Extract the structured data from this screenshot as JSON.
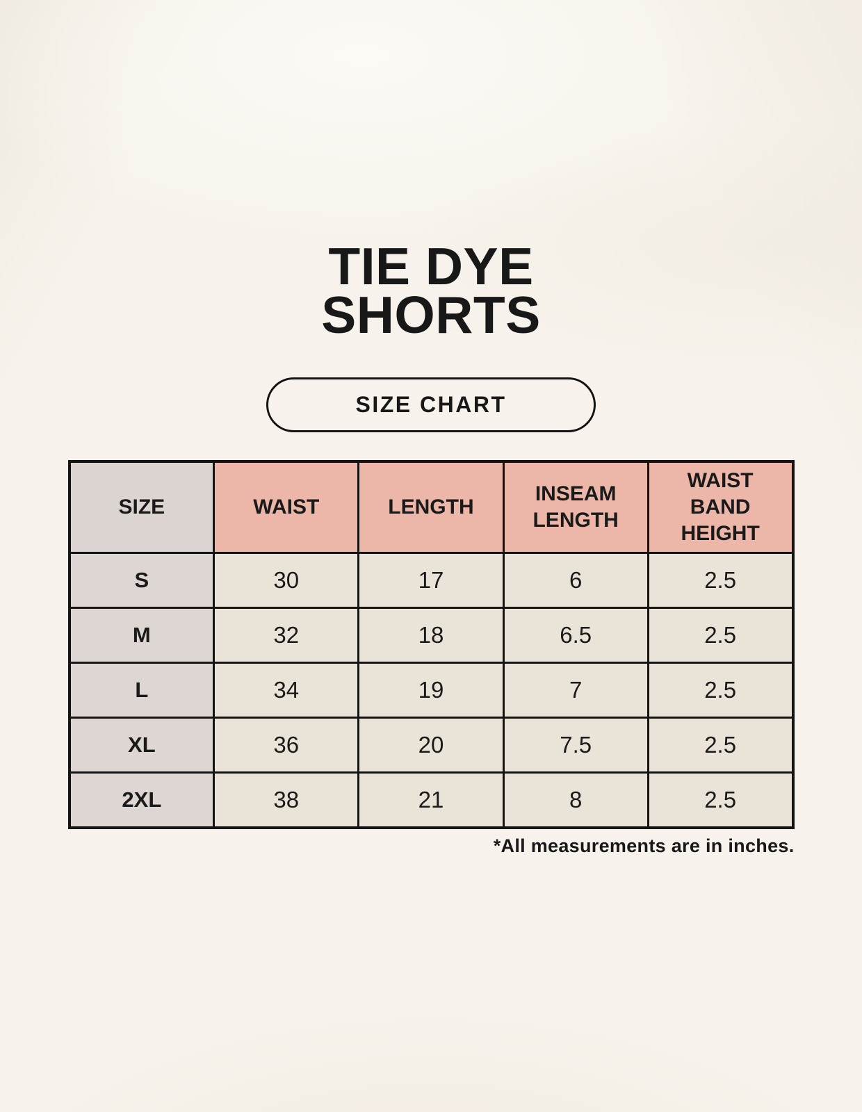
{
  "header": {
    "title_line1": "TIE DYE",
    "title_line2": "SHORTS",
    "badge": "SIZE CHART"
  },
  "chart_data": {
    "type": "table",
    "title": "TIE DYE SHORTS",
    "columns": [
      "SIZE",
      "WAIST",
      "LENGTH",
      "INSEAM LENGTH",
      "WAIST BAND HEIGHT"
    ],
    "rows": [
      [
        "S",
        "30",
        "17",
        "6",
        "2.5"
      ],
      [
        "M",
        "32",
        "18",
        "6.5",
        "2.5"
      ],
      [
        "L",
        "34",
        "19",
        "7",
        "2.5"
      ],
      [
        "XL",
        "36",
        "20",
        "7.5",
        "2.5"
      ],
      [
        "2XL",
        "38",
        "21",
        "8",
        "2.5"
      ]
    ],
    "note": "*All measurements are in inches.",
    "units": "inches"
  },
  "colors": {
    "background": "#f7f3ec",
    "text": "#1a1a1a",
    "border": "#141414",
    "header_pink": "#ecb7a8",
    "header_gray": "#dbd4d0",
    "size_column_gray": "#ddd6d2",
    "cell_cream": "#eae3d7"
  }
}
